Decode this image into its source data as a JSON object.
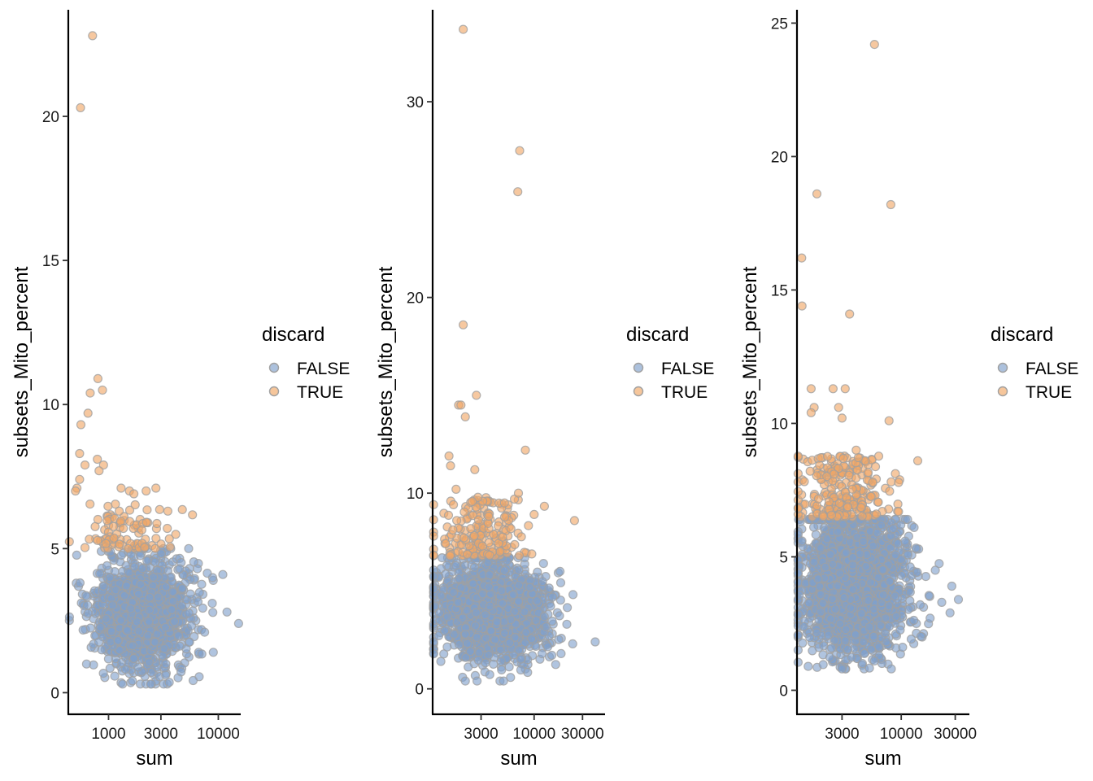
{
  "colors": {
    "FALSE": "#7f9fcb",
    "TRUE": "#f1a765",
    "point_stroke": "#a0a0a0"
  },
  "chart_data": [
    {
      "type": "scatter",
      "xlabel": "sum",
      "ylabel": "subsets_Mito_percent",
      "xscale": "log10",
      "xlim": [
        430,
        16000
      ],
      "ylim": [
        -0.75,
        23.7
      ],
      "xticks": [
        1000,
        3000,
        10000
      ],
      "xtick_labels": [
        "1000",
        "3000",
        "10000"
      ],
      "yticks": [
        0,
        5,
        10,
        15,
        20
      ],
      "ytick_labels": [
        "0",
        "5",
        "10",
        "15",
        "20"
      ],
      "legend": {
        "title": "discard",
        "entries": [
          "FALSE",
          "TRUE"
        ],
        "placement": "right"
      },
      "cloud": {
        "FALSE": {
          "n": 1700,
          "x_log_mean": 3.31,
          "x_log_sd": 0.21,
          "y_mean": 2.7,
          "y_sd": 0.9,
          "y_max": 5.0,
          "y_min": 0.3
        },
        "TRUE": {
          "n": 90,
          "x_log_mean": 3.18,
          "x_log_sd": 0.22,
          "y_min": 5.0,
          "y_max": 6.6
        }
      },
      "outliers_true": [
        [
          715,
          22.8
        ],
        [
          555,
          20.3
        ],
        [
          800,
          10.9
        ],
        [
          880,
          10.5
        ],
        [
          680,
          10.4
        ],
        [
          650,
          9.7
        ],
        [
          560,
          9.3
        ],
        [
          545,
          8.3
        ],
        [
          790,
          8.1
        ],
        [
          900,
          7.9
        ],
        [
          610,
          7.9
        ],
        [
          820,
          7.7
        ],
        [
          545,
          7.4
        ],
        [
          515,
          7.1
        ],
        [
          500,
          7.0
        ],
        [
          1550,
          7.0
        ],
        [
          2700,
          7.1
        ],
        [
          2200,
          7.0
        ],
        [
          1300,
          7.1
        ],
        [
          1700,
          6.9
        ]
      ],
      "outliers_false": [
        [
          15300,
          2.4
        ],
        [
          11000,
          4.1
        ],
        [
          12000,
          2.8
        ],
        [
          8800,
          3.1
        ],
        [
          7500,
          2.1
        ],
        [
          9000,
          1.4
        ]
      ]
    },
    {
      "type": "scatter",
      "xlabel": "sum",
      "ylabel": "subsets_Mito_percent",
      "xscale": "log10",
      "xlim": [
        1000,
        50000
      ],
      "ylim": [
        -1.3,
        34.7
      ],
      "xticks": [
        3000,
        10000,
        30000
      ],
      "xtick_labels": [
        "3000",
        "10000",
        "30000"
      ],
      "yticks": [
        0,
        10,
        20,
        30
      ],
      "ytick_labels": [
        "0",
        "10",
        "20",
        "30"
      ],
      "legend": {
        "title": "discard",
        "entries": [
          "FALSE",
          "TRUE"
        ],
        "placement": "right"
      },
      "cloud": {
        "FALSE": {
          "n": 1900,
          "x_log_mean": 3.58,
          "x_log_sd": 0.26,
          "y_mean": 3.9,
          "y_sd": 1.2,
          "y_max": 6.7,
          "y_min": 0.4
        },
        "TRUE": {
          "n": 180,
          "x_log_mean": 3.5,
          "x_log_sd": 0.22,
          "y_min": 6.8,
          "y_max": 9.8
        }
      },
      "outliers_true": [
        [
          2000,
          33.7
        ],
        [
          7200,
          27.5
        ],
        [
          6900,
          25.4
        ],
        [
          2000,
          18.6
        ],
        [
          2700,
          15.0
        ],
        [
          1800,
          14.5
        ],
        [
          1900,
          14.5
        ],
        [
          2100,
          13.9
        ],
        [
          8200,
          12.2
        ],
        [
          1450,
          11.9
        ],
        [
          1500,
          11.4
        ],
        [
          2600,
          11.2
        ],
        [
          25000,
          8.6
        ],
        [
          7000,
          10.0
        ],
        [
          1700,
          10.2
        ],
        [
          5100,
          9.5
        ]
      ],
      "outliers_false": [
        [
          40000,
          2.4
        ],
        [
          24000,
          2.3
        ],
        [
          18000,
          6.0
        ],
        [
          21000,
          3.3
        ],
        [
          5000,
          0.4
        ],
        [
          2100,
          0.4
        ]
      ]
    },
    {
      "type": "scatter",
      "xlabel": "sum",
      "ylabel": "subsets_Mito_percent",
      "xscale": "log10",
      "xlim": [
        1200,
        40000
      ],
      "ylim": [
        -0.9,
        25.5
      ],
      "xticks": [
        3000,
        10000,
        30000
      ],
      "xtick_labels": [
        "3000",
        "10000",
        "30000"
      ],
      "yticks": [
        0,
        5,
        10,
        15,
        20,
        25
      ],
      "ytick_labels": [
        "0",
        "5",
        "10",
        "15",
        "20",
        "25"
      ],
      "legend": {
        "title": "discard",
        "entries": [
          "FALSE",
          "TRUE"
        ],
        "placement": "right"
      },
      "cloud": {
        "FALSE": {
          "n": 2300,
          "x_log_mean": 3.58,
          "x_log_sd": 0.22,
          "y_mean": 4.0,
          "y_sd": 1.3,
          "y_max": 6.4,
          "y_min": 0.8
        },
        "TRUE": {
          "n": 240,
          "x_log_mean": 3.5,
          "x_log_sd": 0.2,
          "y_min": 6.5,
          "y_max": 8.8
        }
      },
      "outliers_true": [
        [
          5800,
          24.2
        ],
        [
          1800,
          18.6
        ],
        [
          8100,
          18.2
        ],
        [
          1320,
          16.2
        ],
        [
          1330,
          14.4
        ],
        [
          3500,
          14.1
        ],
        [
          2500,
          11.3
        ],
        [
          1600,
          11.3
        ],
        [
          3200,
          11.3
        ],
        [
          1700,
          10.6
        ],
        [
          2800,
          10.6
        ],
        [
          1600,
          10.4
        ],
        [
          7800,
          10.1
        ],
        [
          3000,
          10.2
        ],
        [
          14000,
          8.6
        ],
        [
          4000,
          9.0
        ]
      ],
      "outliers_false": [
        [
          32000,
          3.4
        ],
        [
          27000,
          2.9
        ],
        [
          28000,
          3.9
        ],
        [
          20000,
          4.5
        ],
        [
          18000,
          2.7
        ],
        [
          13000,
          6.1
        ],
        [
          3000,
          0.8
        ],
        [
          5800,
          1.1
        ]
      ]
    }
  ]
}
